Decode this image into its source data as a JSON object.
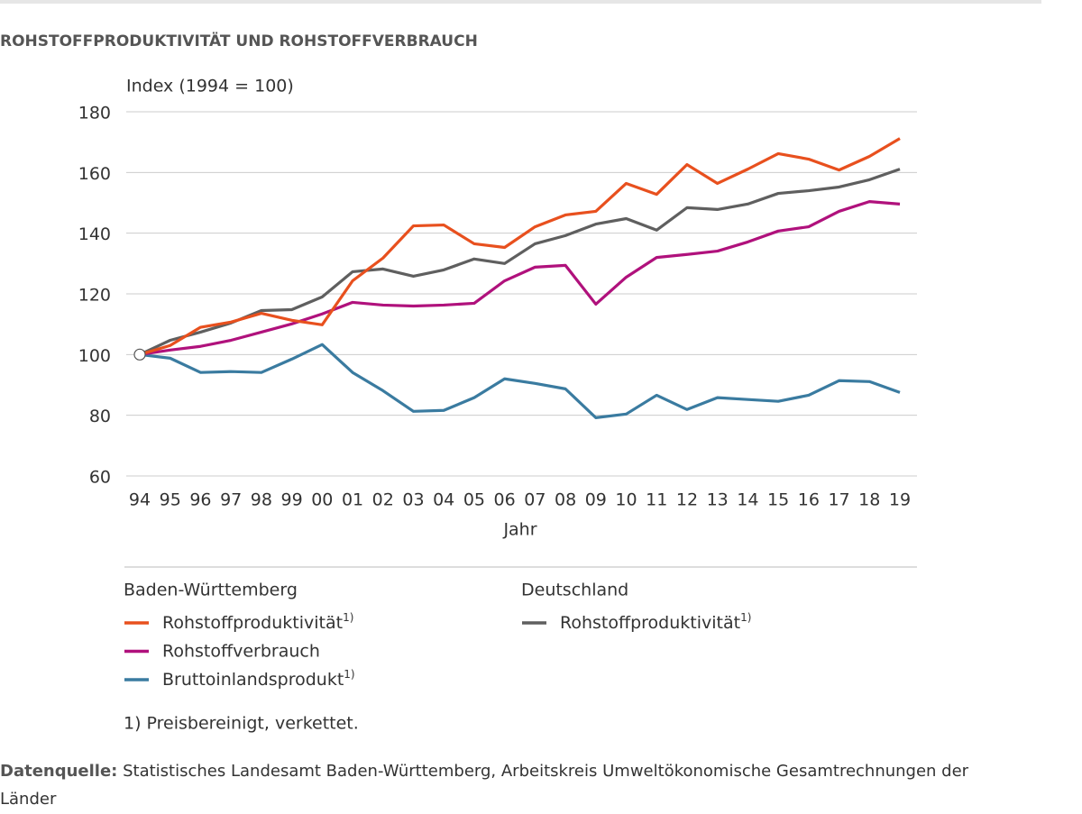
{
  "chart_data": {
    "type": "line",
    "title": "ROHSTOFFPRODUKTIVITÄT UND ROHSTOFFVERBRAUCH",
    "y_label": "Index (1994 = 100)",
    "x_label": "Jahr",
    "categories": [
      "94",
      "95",
      "96",
      "97",
      "98",
      "99",
      "00",
      "01",
      "02",
      "03",
      "04",
      "05",
      "06",
      "07",
      "08",
      "09",
      "10",
      "11",
      "12",
      "13",
      "14",
      "15",
      "16",
      "17",
      "18",
      "19"
    ],
    "ylim": [
      60,
      180
    ],
    "yticks": [
      60,
      80,
      100,
      120,
      140,
      160,
      180
    ],
    "grid": true,
    "series": [
      {
        "name": "Rohstoffproduktivität",
        "footnote_ref": "1)",
        "group": "Baden-Württemberg",
        "color": "#e8501e",
        "values": [
          100,
          103,
          109,
          110.7,
          113.6,
          111.3,
          109.8,
          124.3,
          131.8,
          142.4,
          142.7,
          136.5,
          135.3,
          142.1,
          146,
          147.2,
          156.4,
          152.8,
          162.6,
          156.4,
          161.1,
          166.2,
          164.4,
          160.8,
          165.3,
          171.2
        ]
      },
      {
        "name": "Rohstoffverbrauch",
        "group": "Baden-Württemberg",
        "color": "#b0117c",
        "values": [
          100,
          101.5,
          102.7,
          104.7,
          107.4,
          110.1,
          113.4,
          117.2,
          116.3,
          116,
          116.3,
          116.9,
          124.3,
          128.8,
          129.4,
          116.6,
          125.5,
          132,
          133,
          134.1,
          137.1,
          140.7,
          142.1,
          147.2,
          150.4,
          149.6
        ]
      },
      {
        "name": "Bruttoinlandsprodukt",
        "footnote_ref": "1)",
        "group": "Baden-Württemberg",
        "color": "#3a7ba0",
        "values": [
          100,
          98.8,
          94.1,
          94.4,
          94.1,
          98.5,
          103.3,
          94.1,
          88.1,
          81.3,
          81.6,
          85.8,
          92,
          90.5,
          88.7,
          79.2,
          80.4,
          86.6,
          81.9,
          85.8,
          85.2,
          84.6,
          86.6,
          91.4,
          91.1,
          87.5
        ]
      },
      {
        "name": "Rohstoffproduktivität",
        "footnote_ref": "1)",
        "group": "Deutschland",
        "color": "#5f5f5f",
        "values": [
          100,
          104.7,
          107.4,
          110.4,
          114.5,
          114.8,
          119,
          127.3,
          128.2,
          125.8,
          127.9,
          131.5,
          130,
          136.5,
          139.2,
          143,
          144.8,
          141,
          148.4,
          147.8,
          149.6,
          153.1,
          154,
          155.2,
          157.6,
          161.1
        ]
      }
    ],
    "footnote": "1) Preisbereinigt, verkettet.",
    "source_label": "Datenquelle:",
    "source_text": "Statistisches Landesamt Baden-Württemberg, Arbeitskreis Umweltökonomische Gesamtrechnungen der Länder"
  }
}
